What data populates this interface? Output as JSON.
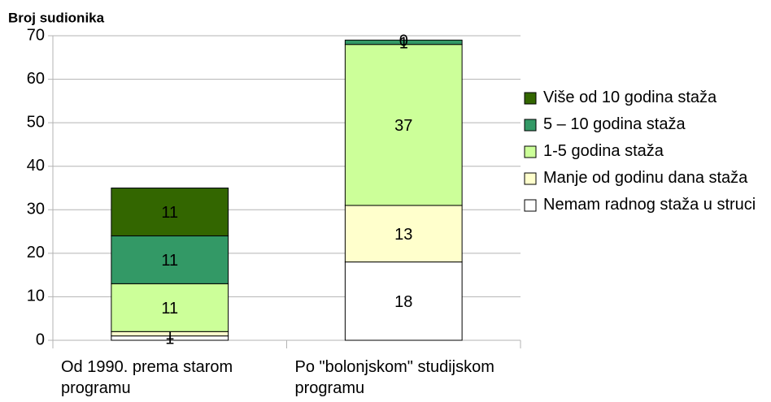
{
  "chart_data": {
    "type": "stacked_bar",
    "ylabel": "Broj sudionika",
    "categories": [
      "Od 1990. prema starom programu",
      "Po \"bolonjskom\" studijskom programu"
    ],
    "series": [
      {
        "name": "Nemam radnog staža u struci",
        "color": "#ffffff",
        "values": [
          1,
          18
        ]
      },
      {
        "name": "Manje od godinu dana staža",
        "color": "#ffffcc",
        "values": [
          1,
          13
        ]
      },
      {
        "name": "1-5 godina staža",
        "color": "#ccff99",
        "values": [
          11,
          37
        ]
      },
      {
        "name": "5 – 10 godina staža",
        "color": "#339966",
        "values": [
          11,
          1
        ]
      },
      {
        "name": "Više od 10 godina staža",
        "color": "#336600",
        "values": [
          11,
          0
        ]
      }
    ],
    "ylim": [
      0,
      70
    ],
    "yticks": [
      0,
      10,
      20,
      30,
      40,
      50,
      60,
      70
    ],
    "grid": true,
    "legend": "right"
  }
}
